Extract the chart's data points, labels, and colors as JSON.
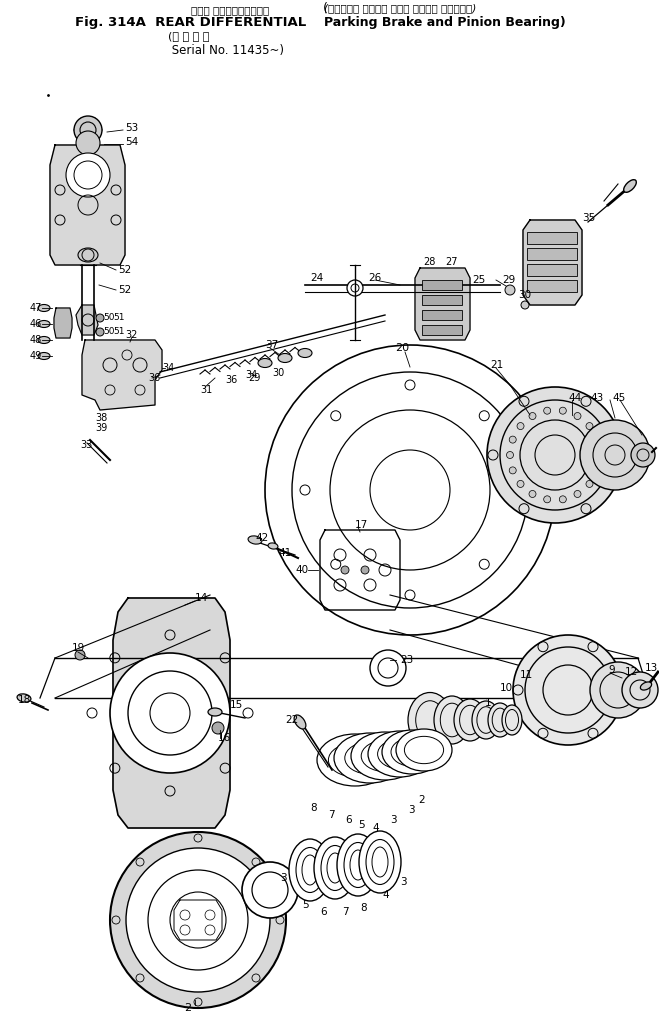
{
  "title_line1_jp": "リャー ディファレンシャル",
  "title_line1_en": "Fig. 314A  REAR DIFFERENTIAL",
  "title_line2_jp": "適 用 号 機",
  "title_line2_en": "Serial No. 11435~",
  "title_right_jp": "パーキング ブレーキ および ピニオン ベアリング",
  "title_right_en": "Parking Brake and Pinion Bearing",
  "bg": "#ffffff",
  "lc": "#000000",
  "fw": 6.59,
  "fh": 10.18,
  "dpi": 100
}
